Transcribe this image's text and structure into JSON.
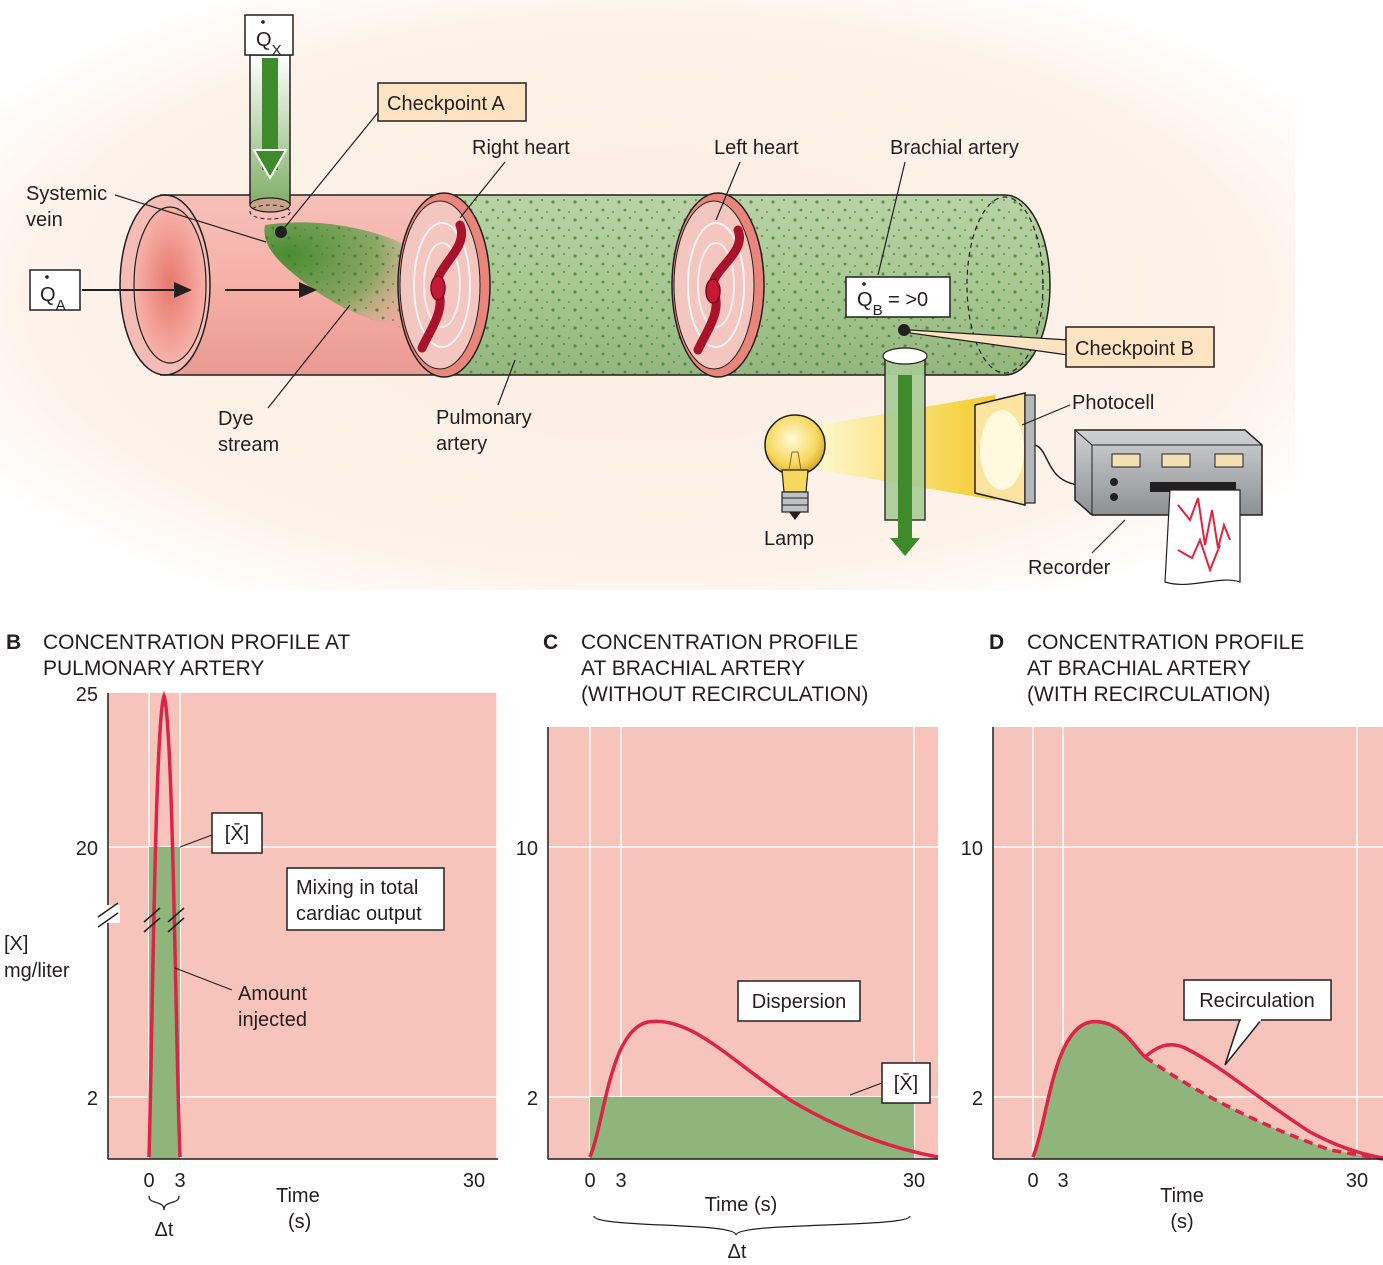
{
  "diagram": {
    "qx_label": "Q",
    "qx_sub": "X",
    "qa_label": "Q",
    "qa_sub": "A",
    "qb_label": "Q",
    "qb_sub": "B",
    "qb_rest": " = >0",
    "checkpoint_a": "Checkpoint A",
    "checkpoint_b": "Checkpoint B",
    "systemic_vein_1": "Systemic",
    "systemic_vein_2": "vein",
    "right_heart": "Right heart",
    "left_heart": "Left heart",
    "brachial_artery": "Brachial artery",
    "dye_stream_1": "Dye",
    "dye_stream_2": "stream",
    "pulmonary_artery_1": "Pulmonary",
    "pulmonary_artery_2": "artery",
    "photocell": "Photocell",
    "lamp": "Lamp",
    "recorder": "Recorder"
  },
  "panels": {
    "b": {
      "letter": "B",
      "title_1": "CONCENTRATION PROFILE AT",
      "title_2": "PULMONARY ARTERY",
      "ylabel_1": "[X]",
      "ylabel_2": "mg/liter",
      "xlabel_1": "Time",
      "xlabel_2": "(s)",
      "ticks_y": [
        "25",
        "20",
        "2"
      ],
      "ticks_x": [
        "0",
        "3",
        "30"
      ],
      "delta_t": "Δt",
      "mean_label": "[X̄]",
      "mixing_1": "Mixing in total",
      "mixing_2": "cardiac output",
      "amount_1": "Amount",
      "amount_2": "injected"
    },
    "c": {
      "letter": "C",
      "title_1": "CONCENTRATION PROFILE",
      "title_2": "AT BRACHIAL ARTERY",
      "title_3": "(WITHOUT RECIRCULATION)",
      "xlabel": "Time (s)",
      "ticks_y": [
        "10",
        "2"
      ],
      "ticks_x": [
        "0",
        "3",
        "30"
      ],
      "delta_t": "Δt",
      "mean_label": "[X̄]",
      "dispersion": "Dispersion"
    },
    "d": {
      "letter": "D",
      "title_1": "CONCENTRATION PROFILE",
      "title_2": "AT BRACHIAL ARTERY",
      "title_3": "(WITH RECIRCULATION)",
      "xlabel_1": "Time",
      "xlabel_2": "(s)",
      "ticks_y": [
        "10",
        "2"
      ],
      "ticks_x": [
        "0",
        "3",
        "30"
      ],
      "recirculation": "Recirculation"
    }
  },
  "colors": {
    "panel_bg": "#f7c4bc",
    "dye_green": "#8fb57c",
    "curve_red": "#dc2446",
    "vessel_pink": "#f5b3ac",
    "callout_fill": "#fde3c1"
  }
}
